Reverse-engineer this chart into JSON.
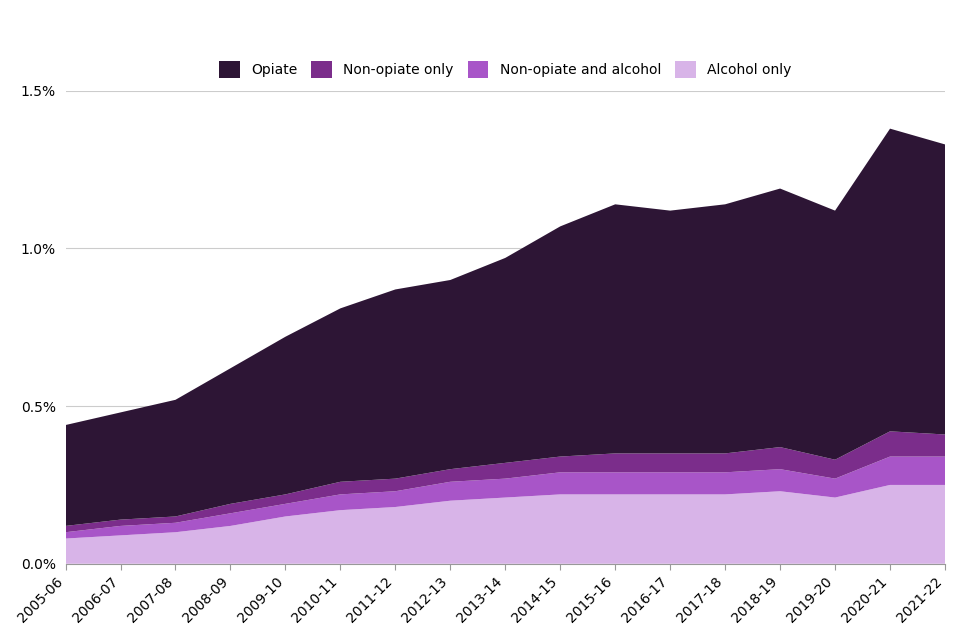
{
  "years": [
    "2005-06",
    "2006-07",
    "2007-08",
    "2008-09",
    "2009-10",
    "2010-11",
    "2011-12",
    "2012-13",
    "2013-14",
    "2014-15",
    "2015-16",
    "2016-17",
    "2017-18",
    "2018-19",
    "2019-20",
    "2020-21",
    "2021-22"
  ],
  "opiate": [
    0.0032,
    0.0034,
    0.0037,
    0.0043,
    0.005,
    0.0055,
    0.006,
    0.006,
    0.0065,
    0.0073,
    0.0079,
    0.0077,
    0.0079,
    0.0082,
    0.0079,
    0.0096,
    0.0092
  ],
  "non_opiate_only": [
    0.0002,
    0.0002,
    0.0002,
    0.0003,
    0.0003,
    0.0004,
    0.0004,
    0.0004,
    0.0005,
    0.0005,
    0.0006,
    0.0006,
    0.0006,
    0.0007,
    0.0006,
    0.0008,
    0.0007
  ],
  "non_opiate_and_alcohol": [
    0.0002,
    0.0003,
    0.0003,
    0.0004,
    0.0004,
    0.0005,
    0.0005,
    0.0006,
    0.0006,
    0.0007,
    0.0007,
    0.0007,
    0.0007,
    0.0007,
    0.0006,
    0.0009,
    0.0009
  ],
  "alcohol_only": [
    0.0008,
    0.0009,
    0.001,
    0.0012,
    0.0015,
    0.0017,
    0.0018,
    0.002,
    0.0021,
    0.0022,
    0.0022,
    0.0022,
    0.0022,
    0.0023,
    0.0021,
    0.0025,
    0.0025
  ],
  "colors": {
    "opiate": "#2d1535",
    "non_opiate_only": "#7b2d8b",
    "non_opiate_and_alcohol": "#a855c8",
    "alcohol_only": "#d8b4e8"
  },
  "ylim_max": 0.015,
  "ytick_vals": [
    0.0,
    0.005,
    0.01,
    0.015
  ],
  "ytick_labels": [
    "0.0%",
    "0.5%",
    "1.0%",
    "1.5%"
  ],
  "background_color": "#ffffff",
  "grid_color": "#cccccc"
}
